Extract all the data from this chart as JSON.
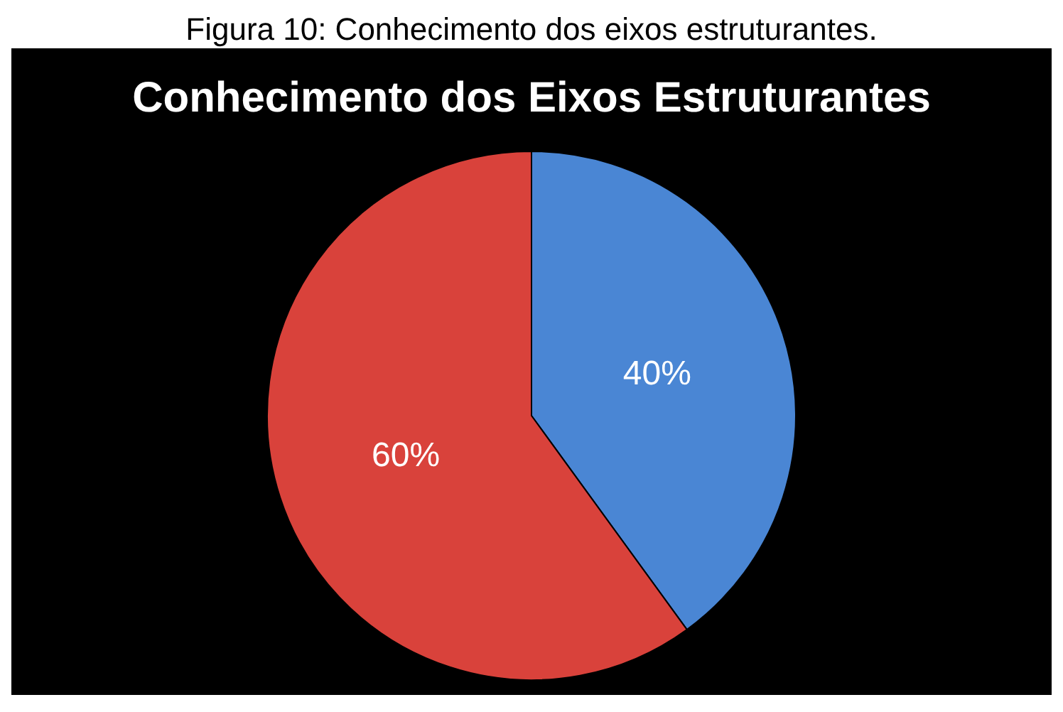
{
  "chart_data": {
    "type": "pie",
    "title": "Conhecimento dos Eixos Estruturantes",
    "annotations": [
      "Figura 10: Conhecimento dos eixos estruturantes."
    ],
    "categories": [
      null,
      null
    ],
    "values": [
      40,
      60
    ],
    "colors": [
      "#4a86d4",
      "#d9423b"
    ],
    "value_labels": [
      "40%",
      "60%"
    ]
  }
}
